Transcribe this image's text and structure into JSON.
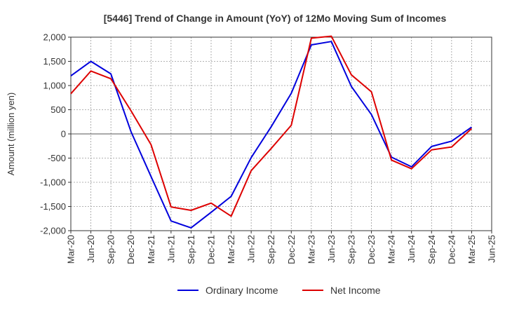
{
  "chart_data": {
    "type": "line",
    "title": "[5446]  Trend of Change in Amount (YoY) of 12Mo Moving Sum of Incomes",
    "xlabel": "",
    "ylabel": "Amount (million yen)",
    "ylim": [
      -2000,
      2000
    ],
    "yticks": [
      2000,
      1500,
      1000,
      500,
      0,
      -500,
      -1000,
      -1500,
      -2000
    ],
    "ytick_labels": [
      "2,000",
      "1,500",
      "1,000",
      "500",
      "0",
      "-500",
      "-1,000",
      "-1,500",
      "-2,000"
    ],
    "x": [
      "Mar-20",
      "Jun-20",
      "Sep-20",
      "Dec-20",
      "Mar-21",
      "Jun-21",
      "Sep-21",
      "Dec-21",
      "Mar-22",
      "Jun-22",
      "Sep-22",
      "Dec-22",
      "Mar-23",
      "Jun-23",
      "Sep-23",
      "Dec-23",
      "Mar-24",
      "Jun-24",
      "Sep-24",
      "Dec-24",
      "Mar-25",
      "Jun-25"
    ],
    "grid": true,
    "legend_position": "bottom-center",
    "series": [
      {
        "name": "Ordinary Income",
        "color": "#0000dd",
        "values": [
          1200,
          1500,
          1240,
          50,
          -880,
          -1800,
          -1940,
          -1620,
          -1290,
          -490,
          150,
          840,
          1840,
          1910,
          980,
          400,
          -480,
          -680,
          -260,
          -150,
          140,
          null
        ]
      },
      {
        "name": "Net Income",
        "color": "#dd0000",
        "values": [
          830,
          1300,
          1140,
          480,
          -220,
          -1510,
          -1580,
          -1430,
          -1700,
          -760,
          -300,
          180,
          1980,
          2020,
          1220,
          870,
          -540,
          -720,
          -330,
          -270,
          110,
          null
        ]
      }
    ]
  }
}
